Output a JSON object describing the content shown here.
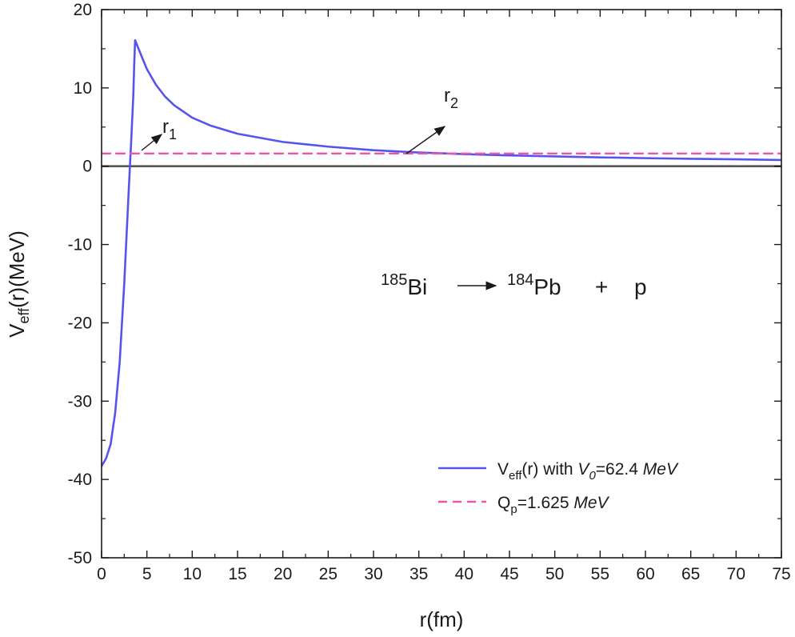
{
  "chart_data": {
    "type": "line",
    "xlabel": {
      "main": "r(fm)"
    },
    "ylabel": {
      "main": "V",
      "sub": "eff",
      "rest": "(r)(MeV)"
    },
    "xlim": [
      0,
      75
    ],
    "ylim": [
      -50,
      20
    ],
    "xticks": [
      0,
      5,
      10,
      15,
      20,
      25,
      30,
      35,
      40,
      45,
      50,
      55,
      60,
      65,
      70,
      75
    ],
    "xtick_labels": [
      "0",
      "5",
      "10",
      "15",
      "20",
      "25",
      "30",
      "35",
      "40",
      "45",
      "50",
      "55",
      "60",
      "65",
      "70",
      "75"
    ],
    "yticks": [
      -50,
      -40,
      -30,
      -20,
      -10,
      0,
      10,
      20
    ],
    "ytick_labels": [
      "-50",
      "-40",
      "-30",
      "-20",
      "-10",
      "0",
      "10",
      "20"
    ],
    "grid": false,
    "legend_position": "bottom-right",
    "series": [
      {
        "name": "Veff(r) with V0=62.4 MeV",
        "color": "#5555ee",
        "style": "solid",
        "x": [
          0,
          0.5,
          1.0,
          1.5,
          2.0,
          2.5,
          3.0,
          3.3,
          3.5,
          3.6,
          3.7,
          3.8,
          4.5,
          5,
          6,
          7,
          8,
          10,
          12,
          15,
          20,
          25,
          30,
          35,
          40,
          45,
          50,
          55,
          60,
          65,
          70,
          75
        ],
        "y": [
          -38.3,
          -37.3,
          -35.5,
          -31.5,
          -25,
          -15,
          -3,
          4,
          9,
          13,
          16.1,
          15.8,
          13.8,
          12.4,
          10.4,
          8.9,
          7.8,
          6.2,
          5.2,
          4.15,
          3.1,
          2.5,
          2.05,
          1.75,
          1.55,
          1.38,
          1.25,
          1.13,
          1.03,
          0.95,
          0.88,
          0.8
        ]
      },
      {
        "name": "Qp=1.625 MeV",
        "color": "#ee55aa",
        "style": "dashed",
        "x": [
          0,
          75
        ],
        "y": [
          1.625,
          1.625
        ]
      }
    ],
    "reference_line": {
      "y": 0,
      "color": "#555555"
    },
    "legend": [
      {
        "pre": "V",
        "sub": "eff",
        "mid": "(r) with ",
        "ital1": "V",
        "ital_sub": "0",
        "post": "=62.4 ",
        "ital2": "MeV"
      },
      {
        "pre": "Q",
        "sub": "p",
        "post": "=1.625 ",
        "ital2": "MeV"
      }
    ],
    "annotations": {
      "r1": {
        "base": "r",
        "sub": "1",
        "x": 3.7,
        "y": 1.625
      },
      "r2": {
        "base": "r",
        "sub": "2",
        "x": 33.8,
        "y": 1.625
      },
      "reaction": {
        "sup1": "185",
        "el1": "Bi",
        "sup2": "184",
        "el2": "Pb",
        "plus": "+",
        "p": "p"
      }
    }
  }
}
